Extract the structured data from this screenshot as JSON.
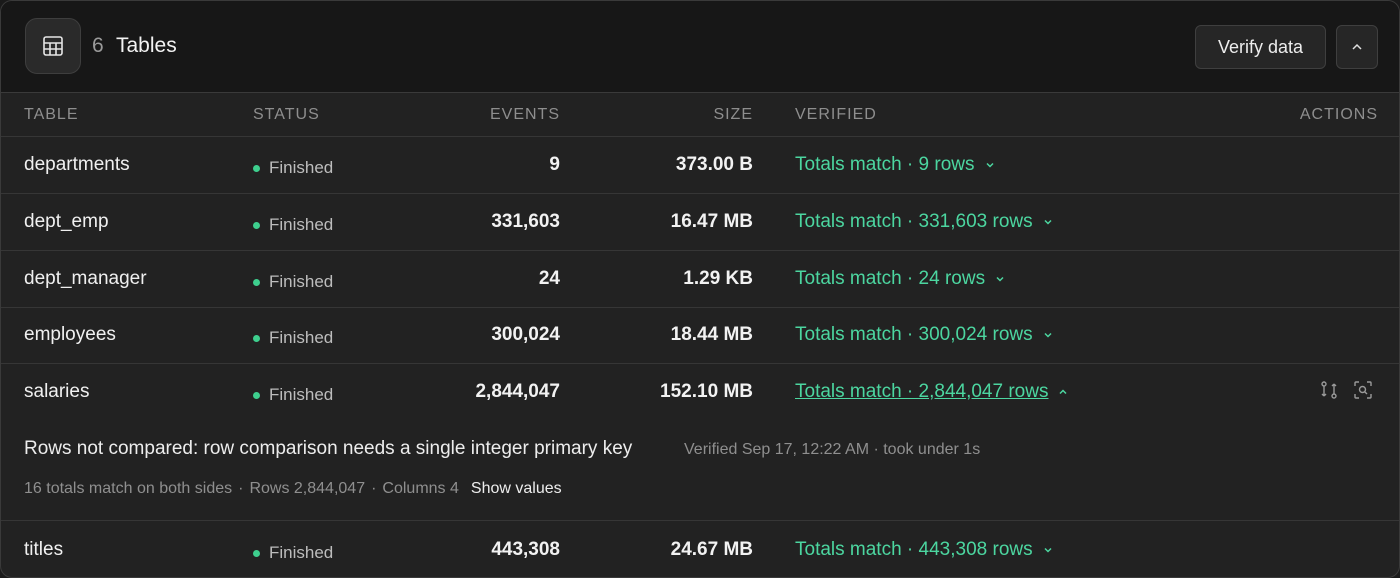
{
  "header": {
    "count": "6",
    "title": "Tables",
    "verify_button": "Verify data",
    "icon": "table-grid-icon",
    "collapse_icon": "chevron-up-icon"
  },
  "columns": {
    "table": "TABLE",
    "status": "STATUS",
    "events": "EVENTS",
    "size": "SIZE",
    "verified": "VERIFIED",
    "actions": "ACTIONS"
  },
  "rows": [
    {
      "name": "departments",
      "status": "Finished",
      "events": "9",
      "size": "373.00 B",
      "verified": "Totals match · 9 rows",
      "expanded": false
    },
    {
      "name": "dept_emp",
      "status": "Finished",
      "events": "331,603",
      "size": "16.47 MB",
      "verified": "Totals match · 331,603 rows",
      "expanded": false
    },
    {
      "name": "dept_manager",
      "status": "Finished",
      "events": "24",
      "size": "1.29 KB",
      "verified": "Totals match · 24 rows",
      "expanded": false
    },
    {
      "name": "employees",
      "status": "Finished",
      "events": "300,024",
      "size": "18.44 MB",
      "verified": "Totals match · 300,024 rows",
      "expanded": false
    },
    {
      "name": "salaries",
      "status": "Finished",
      "events": "2,844,047",
      "size": "152.10 MB",
      "verified": "Totals match · 2,844,047 rows",
      "expanded": true
    },
    {
      "name": "titles",
      "status": "Finished",
      "events": "443,308",
      "size": "24.67 MB",
      "verified": "Totals match · 443,308 rows",
      "expanded": false
    }
  ],
  "detail": {
    "message": "Rows not compared: row comparison needs a single integer primary key",
    "verified_at": "Verified Sep 17, 12:22 AM · took under 1s",
    "totals_match": "16 totals match on both sides",
    "rows": "Rows 2,844,047",
    "columns": "Columns 4",
    "show_values": "Show values"
  },
  "colors": {
    "accent_green": "#4cd6a0",
    "status_dot": "#3ecf8e",
    "background": "#222222",
    "header_background": "#171717"
  }
}
